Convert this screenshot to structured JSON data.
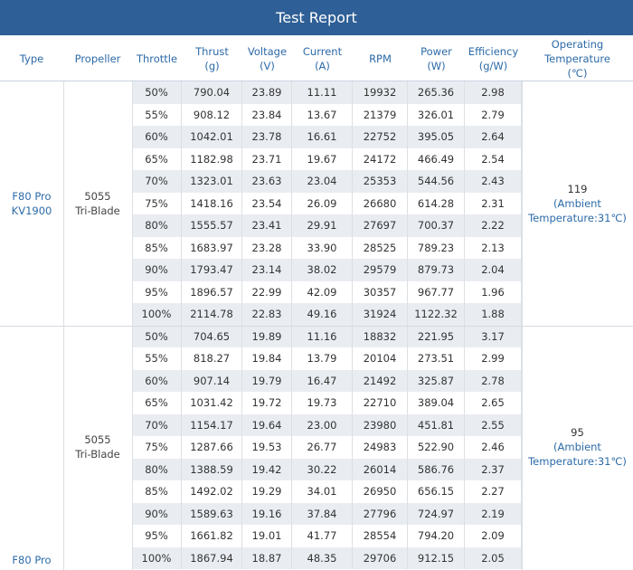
{
  "title": "Test Report",
  "headers": [
    "Type",
    "Propeller",
    "Throttle",
    "Thrust\n(g)",
    "Voltage\n(V)",
    "Current\n(A)",
    "RPM",
    "Power\n(W)",
    "Efficiency\n(g/W)",
    "Operating\nTemperature\n(℃)"
  ],
  "groups": [
    {
      "type": "F80 Pro\nKV1900",
      "propeller": "5055\nTri-Blade",
      "temperature": "119",
      "ambient": "(Ambient\nTemperature:31℃)",
      "rows": [
        [
          "50%",
          "790.04",
          "23.89",
          "11.11",
          "19932",
          "265.36",
          "2.98"
        ],
        [
          "55%",
          "908.12",
          "23.84",
          "13.67",
          "21379",
          "326.01",
          "2.79"
        ],
        [
          "60%",
          "1042.01",
          "23.78",
          "16.61",
          "22752",
          "395.05",
          "2.64"
        ],
        [
          "65%",
          "1182.98",
          "23.71",
          "19.67",
          "24172",
          "466.49",
          "2.54"
        ],
        [
          "70%",
          "1323.01",
          "23.63",
          "23.04",
          "25353",
          "544.56",
          "2.43"
        ],
        [
          "75%",
          "1418.16",
          "23.54",
          "26.09",
          "26680",
          "614.28",
          "2.31"
        ],
        [
          "80%",
          "1555.57",
          "23.41",
          "29.91",
          "27697",
          "700.37",
          "2.22"
        ],
        [
          "85%",
          "1683.97",
          "23.28",
          "33.90",
          "28525",
          "789.23",
          "2.13"
        ],
        [
          "90%",
          "1793.47",
          "23.14",
          "38.02",
          "29579",
          "879.73",
          "2.04"
        ],
        [
          "95%",
          "1896.57",
          "22.99",
          "42.09",
          "30357",
          "967.77",
          "1.96"
        ],
        [
          "100%",
          "2114.78",
          "22.83",
          "49.16",
          "31924",
          "1122.32",
          "1.88"
        ]
      ]
    },
    {
      "type": "F80 Pro",
      "propeller": "5055\nTri-Blade",
      "temperature": "95",
      "ambient": "(Ambient\nTemperature:31℃)",
      "rows": [
        [
          "50%",
          "704.65",
          "19.89",
          "11.16",
          "18832",
          "221.95",
          "3.17"
        ],
        [
          "55%",
          "818.27",
          "19.84",
          "13.79",
          "20104",
          "273.51",
          "2.99"
        ],
        [
          "60%",
          "907.14",
          "19.79",
          "16.47",
          "21492",
          "325.87",
          "2.78"
        ],
        [
          "65%",
          "1031.42",
          "19.72",
          "19.73",
          "22710",
          "389.04",
          "2.65"
        ],
        [
          "70%",
          "1154.17",
          "19.64",
          "23.00",
          "23980",
          "451.81",
          "2.55"
        ],
        [
          "75%",
          "1287.66",
          "19.53",
          "26.77",
          "24983",
          "522.90",
          "2.46"
        ],
        [
          "80%",
          "1388.59",
          "19.42",
          "30.22",
          "26014",
          "586.76",
          "2.37"
        ],
        [
          "85%",
          "1492.02",
          "19.29",
          "34.01",
          "26950",
          "656.15",
          "2.27"
        ],
        [
          "90%",
          "1589.63",
          "19.16",
          "37.84",
          "27796",
          "724.97",
          "2.19"
        ],
        [
          "95%",
          "1661.82",
          "19.01",
          "41.77",
          "28554",
          "794.20",
          "2.09"
        ],
        [
          "100%",
          "1867.94",
          "18.87",
          "48.35",
          "29706",
          "912.15",
          "2.05"
        ]
      ]
    }
  ]
}
